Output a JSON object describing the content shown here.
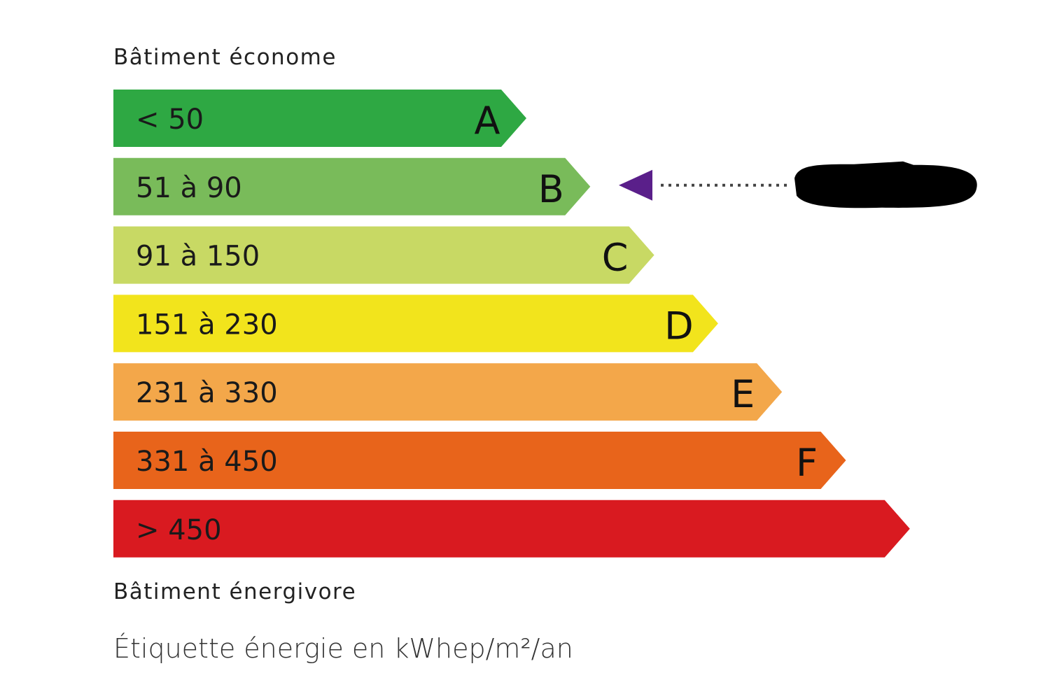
{
  "top_label": "Bâtiment économe",
  "bottom_label": "Bâtiment énergivore",
  "caption": "Étiquette énergie en kWhep/m²/an",
  "classes": [
    {
      "letter": "A",
      "range": "< 50",
      "color": "#2ea843"
    },
    {
      "letter": "B",
      "range": "51 à 90",
      "color": "#79bb5a"
    },
    {
      "letter": "C",
      "range": "91 à 150",
      "color": "#c8d964"
    },
    {
      "letter": "D",
      "range": "151 à 230",
      "color": "#f2e41c"
    },
    {
      "letter": "E",
      "range": "231 à 330",
      "color": "#f3a74a"
    },
    {
      "letter": "F",
      "range": "331 à 450",
      "color": "#e8641b"
    },
    {
      "letter": "",
      "range": "> 450",
      "color": "#d91a20"
    }
  ],
  "indicator": {
    "class": "B",
    "arrow_color": "#5a1f8a",
    "value_redacted": true,
    "redaction_color": "#000000"
  }
}
